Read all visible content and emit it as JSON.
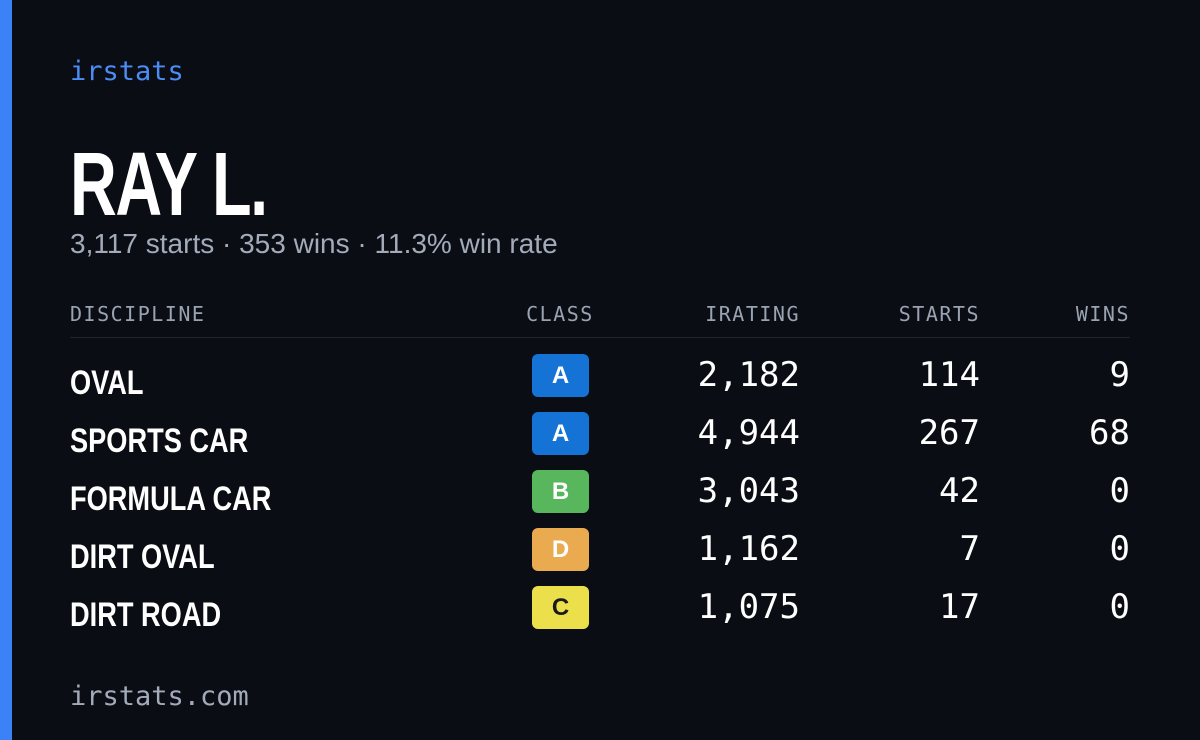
{
  "brand": "irstats",
  "driver": {
    "name": "RAY L.",
    "summary": "3,117 starts · 353 wins · 11.3% win rate"
  },
  "table": {
    "headers": [
      "DISCIPLINE",
      "CLASS",
      "IRATING",
      "STARTS",
      "WINS"
    ],
    "rows": [
      {
        "discipline": "OVAL",
        "class": "A",
        "class_color": "#1573d6",
        "irating": "2,182",
        "starts": 114,
        "wins": 9
      },
      {
        "discipline": "SPORTS CAR",
        "class": "A",
        "class_color": "#1573d6",
        "irating": "4,944",
        "starts": 267,
        "wins": 68
      },
      {
        "discipline": "FORMULA CAR",
        "class": "B",
        "class_color": "#58b65c",
        "irating": "3,043",
        "starts": 42,
        "wins": 0
      },
      {
        "discipline": "DIRT OVAL",
        "class": "D",
        "class_color": "#e9aa50",
        "irating": "1,162",
        "starts": 7,
        "wins": 0
      },
      {
        "discipline": "DIRT ROAD",
        "class": "C",
        "class_color": "#ebe04c",
        "irating": "1,075",
        "starts": 17,
        "wins": 0
      }
    ]
  },
  "footer": "irstats.com"
}
